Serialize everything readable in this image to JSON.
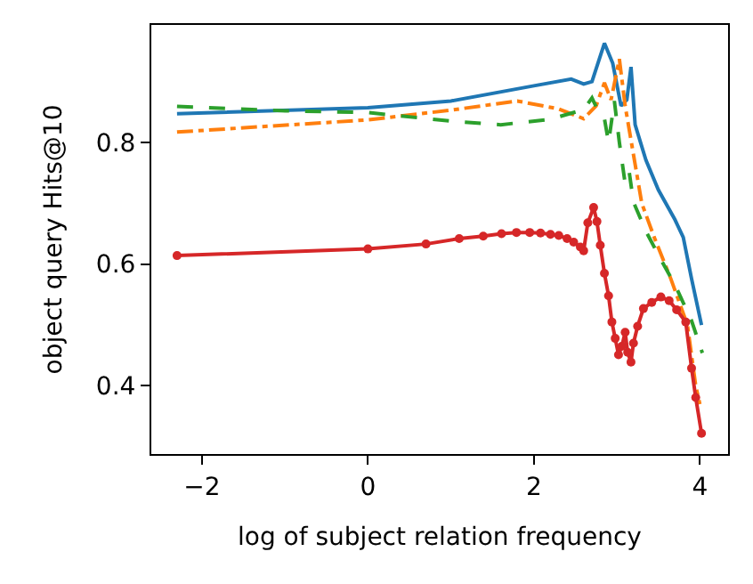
{
  "chart_data": {
    "type": "line",
    "xlabel": "log of subject relation frequency",
    "ylabel": "object query Hits@10",
    "xlim": [
      -2.61,
      4.34
    ],
    "ylim": [
      0.288,
      0.993
    ],
    "xticks": [
      {
        "value": -2,
        "label": "−2"
      },
      0,
      2,
      4
    ],
    "yticks": [
      0.4,
      0.6,
      0.8
    ],
    "series": [
      {
        "color": "#1f77b4",
        "line_style": "solid",
        "marker": "none",
        "x": [
          -2.3,
          0,
          1,
          2,
          2.45,
          2.6,
          2.7,
          2.85,
          2.95,
          3.05,
          3.12,
          3.17,
          3.22,
          3.35,
          3.5,
          3.7,
          3.8,
          3.9,
          4.02
        ],
        "values": [
          0.847,
          0.857,
          0.868,
          0.893,
          0.904,
          0.896,
          0.9,
          0.963,
          0.93,
          0.86,
          0.87,
          0.924,
          0.829,
          0.771,
          0.722,
          0.673,
          0.644,
          0.576,
          0.5
        ]
      },
      {
        "color": "#ff7f0e",
        "line_style": "dashdot",
        "marker": "none",
        "x": [
          -2.3,
          0,
          1,
          1.8,
          2.3,
          2.6,
          2.75,
          2.85,
          2.93,
          3.03,
          3.1,
          3.2,
          3.3,
          3.45,
          3.65,
          3.85,
          3.95,
          4.0
        ],
        "values": [
          0.817,
          0.837,
          0.853,
          0.868,
          0.855,
          0.839,
          0.86,
          0.898,
          0.87,
          0.937,
          0.86,
          0.78,
          0.7,
          0.644,
          0.576,
          0.5,
          0.4,
          0.37
        ]
      },
      {
        "color": "#2ca02c",
        "line_style": "dashed",
        "marker": "none",
        "x": [
          -2.3,
          -1,
          0,
          1,
          1.6,
          2.2,
          2.6,
          2.7,
          2.78,
          2.85,
          2.9,
          2.97,
          3.03,
          3.1,
          3.15,
          3.2,
          3.35,
          3.5,
          3.7,
          3.9,
          4.03
        ],
        "values": [
          0.859,
          0.852,
          0.849,
          0.835,
          0.829,
          0.838,
          0.854,
          0.873,
          0.85,
          0.839,
          0.8,
          0.868,
          0.8,
          0.732,
          0.75,
          0.702,
          0.654,
          0.615,
          0.566,
          0.507,
          0.454
        ]
      },
      {
        "color": "#d62728",
        "line_style": "solid",
        "marker": "circle",
        "x": [
          -2.3,
          0,
          0.7,
          1.1,
          1.39,
          1.61,
          1.79,
          1.95,
          2.08,
          2.2,
          2.3,
          2.4,
          2.48,
          2.56,
          2.6,
          2.65,
          2.72,
          2.76,
          2.8,
          2.85,
          2.9,
          2.94,
          2.98,
          3.02,
          3.06,
          3.1,
          3.13,
          3.17,
          3.2,
          3.25,
          3.32,
          3.42,
          3.53,
          3.63,
          3.72,
          3.83,
          3.9,
          3.95,
          4.02
        ],
        "values": [
          0.614,
          0.625,
          0.633,
          0.642,
          0.646,
          0.65,
          0.652,
          0.652,
          0.651,
          0.649,
          0.647,
          0.642,
          0.636,
          0.628,
          0.622,
          0.668,
          0.693,
          0.67,
          0.631,
          0.585,
          0.548,
          0.505,
          0.478,
          0.451,
          0.465,
          0.488,
          0.455,
          0.439,
          0.47,
          0.498,
          0.527,
          0.537,
          0.546,
          0.54,
          0.525,
          0.505,
          0.429,
          0.381,
          0.322
        ]
      }
    ]
  }
}
